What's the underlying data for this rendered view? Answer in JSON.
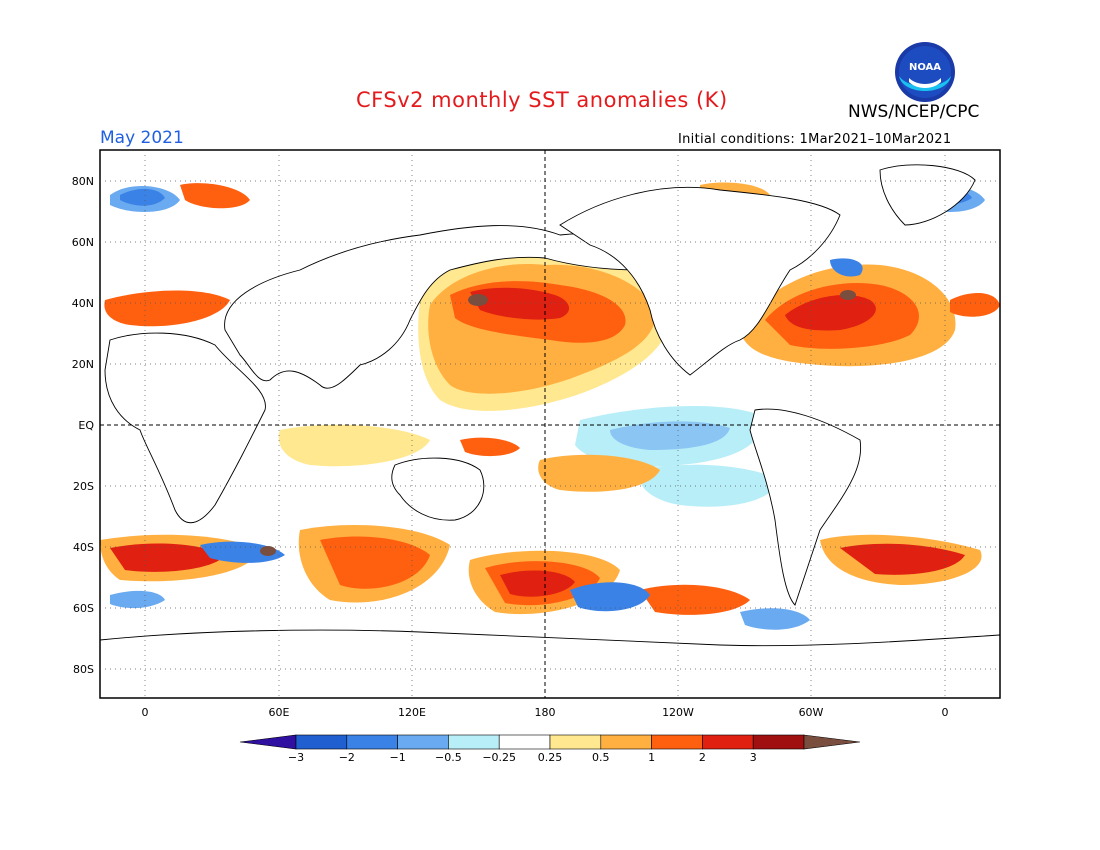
{
  "header": {
    "title": "CFSv2 monthly SST anomalies (K)",
    "org": "NWS/NCEP/CPC",
    "month": "May 2021",
    "initial_conditions": "Initial conditions: 1Mar2021–10Mar2021",
    "logo_text": "NOAA"
  },
  "map": {
    "lon_range": [
      -20,
      380
    ],
    "lat_range": [
      -90,
      90
    ],
    "lat_ticks": [
      "80N",
      "60N",
      "40N",
      "20N",
      "EQ",
      "20S",
      "40S",
      "60S",
      "80S"
    ],
    "lon_ticks": [
      "0",
      "60E",
      "120E",
      "180",
      "120W",
      "60W",
      "0"
    ]
  },
  "colorbar": {
    "levels": [
      "-3",
      "-2",
      "-1",
      "-0.5",
      "-0.25",
      "0.25",
      "0.5",
      "1",
      "2",
      "3"
    ],
    "colors": [
      "#3010a0",
      "#1f5fd0",
      "#3b82e6",
      "#6aaaf0",
      "#b8eef8",
      "#ffffff",
      "#ffe890",
      "#ffb040",
      "#ff6010",
      "#e02010",
      "#a01010",
      "#7a4e3e"
    ]
  }
}
